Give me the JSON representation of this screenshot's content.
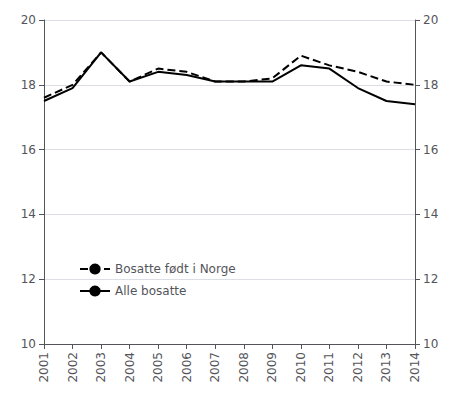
{
  "chart_data": {
    "type": "line",
    "x": [
      2001,
      2002,
      2003,
      2004,
      2005,
      2006,
      2007,
      2008,
      2009,
      2010,
      2011,
      2012,
      2013,
      2014
    ],
    "series": [
      {
        "name": "Bosatte født i Norge",
        "color": "#000000",
        "line_style": "dashed",
        "values": [
          17.6,
          18.0,
          19.0,
          18.1,
          18.5,
          18.4,
          18.1,
          18.1,
          18.2,
          18.9,
          18.6,
          18.4,
          18.1,
          18.0
        ]
      },
      {
        "name": "Alle bosatte",
        "color": "#000000",
        "line_style": "solid",
        "values": [
          17.5,
          17.9,
          19.0,
          18.1,
          18.4,
          18.3,
          18.1,
          18.1,
          18.1,
          18.6,
          18.5,
          17.9,
          17.5,
          17.4
        ]
      }
    ],
    "xlim": [
      2001,
      2014
    ],
    "xticks": [
      2001,
      2002,
      2003,
      2004,
      2005,
      2006,
      2007,
      2008,
      2009,
      2010,
      2011,
      2012,
      2013,
      2014
    ],
    "ylim": [
      10,
      20
    ],
    "yticks": [
      10,
      12,
      14,
      16,
      18,
      20
    ],
    "y2lim": [
      10,
      20
    ],
    "y2ticks": [
      10,
      12,
      14,
      16,
      18,
      20
    ],
    "grid": true,
    "legend": "lower left"
  }
}
